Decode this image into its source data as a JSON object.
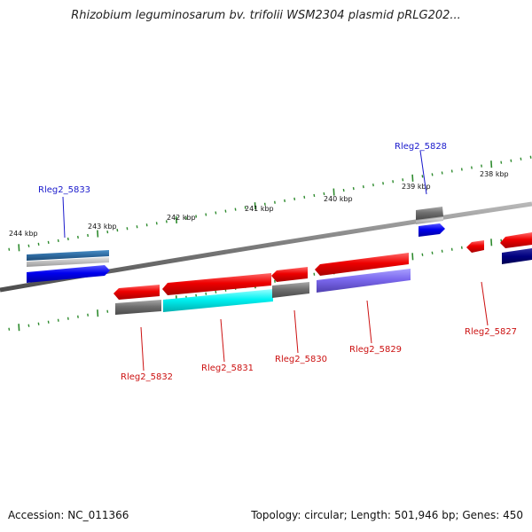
{
  "title": "Rhizobium leguminosarum bv. trifolii WSM2304 plasmid pRLG202...",
  "footer": {
    "accession": "Accession: NC_011366",
    "summary": "Topology: circular; Length: 501,946 bp; Genes: 450"
  },
  "colors": {
    "backbone": "#808080",
    "ticks": "#2e8b2e",
    "label_plus": "#1a1acc",
    "label_minus": "#cc1111"
  },
  "scale": {
    "unit": "kbp",
    "labels": [
      "244 kbp",
      "243 kbp",
      "242 kbp",
      "241 kbp",
      "240 kbp",
      "239 kbp",
      "238 kbp"
    ]
  },
  "genes": [
    {
      "id": "Rleg2_5833",
      "strand": "+",
      "track": "outer",
      "fill": "#0000ee",
      "label_color": "#1a1acc"
    },
    {
      "id": "Rleg2_5828",
      "strand": "+",
      "track": "outer",
      "fill": "#0000ee",
      "label_color": "#1a1acc"
    },
    {
      "id": "Rleg2_5832",
      "strand": "-",
      "track": "inner",
      "fill": "#ee0000",
      "label_color": "#cc1111"
    },
    {
      "id": "Rleg2_5831",
      "strand": "-",
      "track": "inner",
      "fill": "#ee0000",
      "label_color": "#cc1111"
    },
    {
      "id": "Rleg2_5830",
      "strand": "-",
      "track": "inner",
      "fill": "#ee0000",
      "label_color": "#cc1111"
    },
    {
      "id": "Rleg2_5829",
      "strand": "-",
      "track": "inner",
      "fill": "#ee0000",
      "label_color": "#cc1111"
    },
    {
      "id": "Rleg2_5827",
      "strand": "-",
      "track": "inner",
      "fill": "#ee0000",
      "label_color": "#cc1111"
    }
  ]
}
